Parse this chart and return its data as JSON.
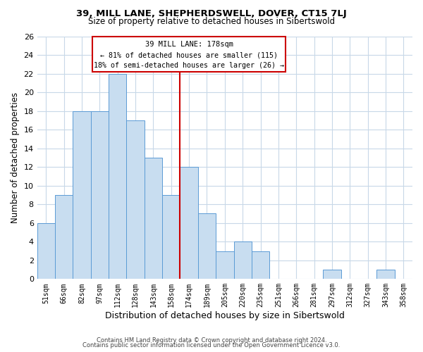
{
  "title1": "39, MILL LANE, SHEPHERDSWELL, DOVER, CT15 7LJ",
  "title2": "Size of property relative to detached houses in Sibertswold",
  "xlabel": "Distribution of detached houses by size in Sibertswold",
  "ylabel": "Number of detached properties",
  "bin_labels": [
    "51sqm",
    "66sqm",
    "82sqm",
    "97sqm",
    "112sqm",
    "128sqm",
    "143sqm",
    "158sqm",
    "174sqm",
    "189sqm",
    "205sqm",
    "220sqm",
    "235sqm",
    "251sqm",
    "266sqm",
    "281sqm",
    "297sqm",
    "312sqm",
    "327sqm",
    "343sqm",
    "358sqm"
  ],
  "bar_heights": [
    6,
    9,
    18,
    18,
    22,
    17,
    13,
    9,
    12,
    7,
    3,
    4,
    3,
    0,
    0,
    0,
    1,
    0,
    0,
    1,
    0
  ],
  "bar_color": "#c8ddf0",
  "bar_edge_color": "#5b9bd5",
  "annotation_title": "39 MILL LANE: 178sqm",
  "annotation_line1": "← 81% of detached houses are smaller (115)",
  "annotation_line2": "18% of semi-detached houses are larger (26) →",
  "vline_color": "#cc0000",
  "ylim": [
    0,
    26
  ],
  "yticks": [
    0,
    2,
    4,
    6,
    8,
    10,
    12,
    14,
    16,
    18,
    20,
    22,
    24,
    26
  ],
  "footer1": "Contains HM Land Registry data © Crown copyright and database right 2024.",
  "footer2": "Contains public sector information licensed under the Open Government Licence v3.0.",
  "bg_color": "#ffffff",
  "grid_color": "#c8d8e8"
}
